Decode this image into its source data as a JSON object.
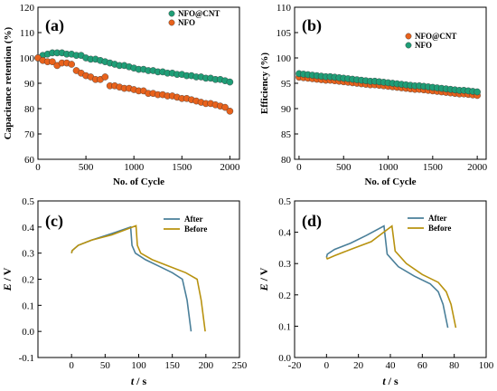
{
  "colors": {
    "teal": "#1f9e77",
    "orange": "#e8621c",
    "after": "#4a7f99",
    "before": "#b8920f"
  },
  "chart_data": [
    {
      "type": "scatter",
      "label": "(a)",
      "xlabel": "No. of Cycle",
      "ylabel": "Capacitance retention (%)",
      "xlim": [
        0,
        2100
      ],
      "ylim": [
        60,
        120
      ],
      "xticks": [
        "0",
        "500",
        "1000",
        "1500",
        "2000"
      ],
      "yticks": [
        "60",
        "70",
        "80",
        "90",
        "100",
        "110",
        "120"
      ],
      "legend_position": "top-right",
      "series": [
        {
          "name": "NFO@CNT",
          "color": "teal",
          "x": [
            0,
            50,
            100,
            150,
            200,
            250,
            300,
            350,
            400,
            450,
            500,
            550,
            600,
            650,
            700,
            750,
            800,
            850,
            900,
            950,
            1000,
            1050,
            1100,
            1150,
            1200,
            1250,
            1300,
            1350,
            1400,
            1450,
            1500,
            1550,
            1600,
            1650,
            1700,
            1750,
            1800,
            1850,
            1900,
            1950,
            2000
          ],
          "y": [
            100,
            101,
            101.5,
            102,
            102,
            102,
            101.5,
            101.5,
            101,
            101,
            100,
            99.5,
            99.5,
            99,
            98.5,
            98,
            97.5,
            97,
            97,
            96.5,
            96,
            95.5,
            95.5,
            95,
            95,
            94.5,
            94.5,
            94,
            94,
            93.5,
            93.5,
            93,
            93,
            92.5,
            92.5,
            92,
            92,
            91.5,
            91.5,
            91,
            90.5
          ]
        },
        {
          "name": "NFO",
          "color": "orange",
          "x": [
            0,
            50,
            100,
            150,
            200,
            250,
            300,
            350,
            400,
            450,
            500,
            550,
            600,
            650,
            700,
            750,
            800,
            850,
            900,
            950,
            1000,
            1050,
            1100,
            1150,
            1200,
            1250,
            1300,
            1350,
            1400,
            1450,
            1500,
            1550,
            1600,
            1650,
            1700,
            1750,
            1800,
            1850,
            1900,
            1950,
            2000
          ],
          "y": [
            100,
            99,
            98.5,
            98.5,
            97,
            98,
            98,
            97.5,
            95,
            94,
            93,
            92.5,
            91.5,
            91.5,
            92.5,
            89,
            89,
            88.5,
            88,
            88,
            87.5,
            87,
            87,
            86,
            86,
            85.5,
            85.5,
            85,
            85,
            84.5,
            84,
            84,
            83.5,
            83,
            82.5,
            82,
            82,
            81.5,
            81,
            80.5,
            79
          ]
        }
      ]
    },
    {
      "type": "scatter",
      "label": "(b)",
      "xlabel": "No. of Cycle",
      "ylabel": "Efficiency (%)",
      "xlim": [
        -50,
        2100
      ],
      "ylim": [
        80,
        110
      ],
      "xticks": [
        "0",
        "500",
        "1000",
        "1500",
        "2000"
      ],
      "yticks": [
        "80",
        "85",
        "90",
        "95",
        "100",
        "105",
        "110"
      ],
      "legend_position": "top-right",
      "series": [
        {
          "name": "NFO@CNT",
          "color": "orange",
          "x": [
            0,
            50,
            100,
            150,
            200,
            250,
            300,
            350,
            400,
            450,
            500,
            550,
            600,
            650,
            700,
            750,
            800,
            850,
            900,
            950,
            1000,
            1050,
            1100,
            1150,
            1200,
            1250,
            1300,
            1350,
            1400,
            1450,
            1500,
            1550,
            1600,
            1650,
            1700,
            1750,
            1800,
            1850,
            1900,
            1950,
            2000
          ],
          "y": [
            96.2,
            96.1,
            96.0,
            95.9,
            95.8,
            95.7,
            95.6,
            95.6,
            95.5,
            95.4,
            95.3,
            95.2,
            95.1,
            95.0,
            94.9,
            94.8,
            94.7,
            94.7,
            94.6,
            94.5,
            94.4,
            94.3,
            94.2,
            94.1,
            94.0,
            93.9,
            93.8,
            93.8,
            93.7,
            93.6,
            93.5,
            93.4,
            93.3,
            93.2,
            93.1,
            93.0,
            92.9,
            92.9,
            92.8,
            92.7,
            92.6
          ]
        },
        {
          "name": "NFO",
          "color": "teal",
          "x": [
            0,
            50,
            100,
            150,
            200,
            250,
            300,
            350,
            400,
            450,
            500,
            550,
            600,
            650,
            700,
            750,
            800,
            850,
            900,
            950,
            1000,
            1050,
            1100,
            1150,
            1200,
            1250,
            1300,
            1350,
            1400,
            1450,
            1500,
            1550,
            1600,
            1650,
            1700,
            1750,
            1800,
            1850,
            1900,
            1950,
            2000
          ],
          "y": [
            96.9,
            96.8,
            96.7,
            96.6,
            96.5,
            96.4,
            96.3,
            96.3,
            96.2,
            96.1,
            96.0,
            95.9,
            95.8,
            95.7,
            95.6,
            95.5,
            95.4,
            95.4,
            95.3,
            95.2,
            95.1,
            95.0,
            94.9,
            94.8,
            94.7,
            94.6,
            94.5,
            94.5,
            94.4,
            94.3,
            94.2,
            94.1,
            94.0,
            93.9,
            93.8,
            93.7,
            93.6,
            93.6,
            93.5,
            93.4,
            93.3
          ]
        }
      ]
    },
    {
      "type": "line",
      "label": "(c)",
      "xlabel_symbol": "t",
      "xlabel_unit": " / s",
      "ylabel_symbol": "E",
      "ylabel_unit": " / V",
      "xlim": [
        -50,
        250
      ],
      "ylim": [
        -0.1,
        0.5
      ],
      "xticks": [
        "0",
        "50",
        "100",
        "150",
        "200",
        "250"
      ],
      "yticks": [
        "-0.1",
        "0.0",
        "0.1",
        "0.2",
        "0.3",
        "0.4",
        "0.5"
      ],
      "legend_position": "top-right",
      "series": [
        {
          "name": "After",
          "color": "after",
          "x": [
            0,
            1,
            10,
            30,
            60,
            88,
            90,
            95,
            110,
            130,
            150,
            165,
            172,
            176,
            178
          ],
          "y": [
            0.3,
            0.31,
            0.33,
            0.35,
            0.375,
            0.4,
            0.33,
            0.3,
            0.275,
            0.25,
            0.225,
            0.2,
            0.12,
            0.04,
            0.0
          ]
        },
        {
          "name": "Before",
          "color": "before",
          "x": [
            0,
            1,
            10,
            30,
            60,
            96,
            98,
            103,
            120,
            145,
            170,
            187,
            193,
            197,
            199
          ],
          "y": [
            0.3,
            0.31,
            0.33,
            0.35,
            0.37,
            0.405,
            0.33,
            0.3,
            0.275,
            0.25,
            0.225,
            0.2,
            0.12,
            0.04,
            0.0
          ]
        }
      ]
    },
    {
      "type": "line",
      "label": "(d)",
      "xlabel_symbol": "t",
      "xlabel_unit": " / s",
      "ylabel_symbol": "E",
      "ylabel_unit": " / V",
      "xlim": [
        -20,
        100
      ],
      "ylim": [
        0.0,
        0.5
      ],
      "xticks": [
        "-20",
        "0",
        "20",
        "40",
        "60",
        "80",
        "100"
      ],
      "yticks": [
        "0.0",
        "0.1",
        "0.2",
        "0.3",
        "0.4",
        "0.5"
      ],
      "legend_position": "top-right",
      "series": [
        {
          "name": "After",
          "color": "after",
          "x": [
            0,
            0.5,
            5,
            15,
            25,
            36,
            38,
            45,
            55,
            65,
            70,
            73,
            75,
            76
          ],
          "y": [
            0.32,
            0.33,
            0.345,
            0.365,
            0.39,
            0.42,
            0.33,
            0.29,
            0.26,
            0.235,
            0.21,
            0.17,
            0.12,
            0.095
          ]
        },
        {
          "name": "Before",
          "color": "before",
          "x": [
            0,
            0.5,
            5,
            15,
            28,
            41,
            43,
            50,
            60,
            70,
            75,
            78,
            80,
            81
          ],
          "y": [
            0.32,
            0.315,
            0.325,
            0.345,
            0.37,
            0.42,
            0.34,
            0.3,
            0.265,
            0.24,
            0.21,
            0.17,
            0.12,
            0.095
          ]
        }
      ]
    }
  ]
}
